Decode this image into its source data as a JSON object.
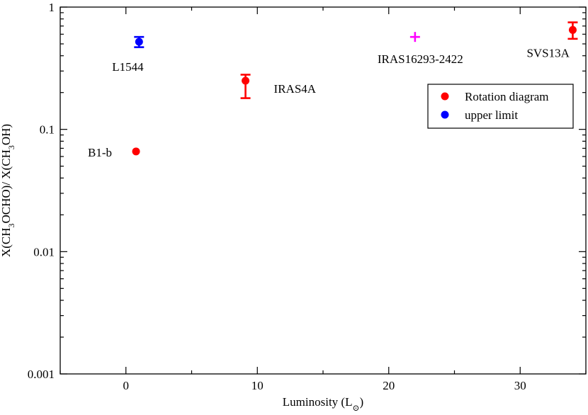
{
  "chart_data": {
    "type": "scatter",
    "title": "",
    "xlabel": "Luminosity (L",
    "xlabel_sub": "⊙",
    "xlabel_close": ")",
    "ylabel_parts": [
      "X(CH",
      "3",
      "OCHO)/ X(CH",
      "3",
      "OH)"
    ],
    "xlim": [
      -5,
      35
    ],
    "ylim": [
      0.001,
      1
    ],
    "yscale": "log",
    "grid": false,
    "x_ticks": [
      0,
      10,
      20,
      30
    ],
    "x_tick_labels": [
      "0",
      "10",
      "20",
      "30"
    ],
    "y_ticks": [
      0.001,
      0.01,
      0.1,
      1
    ],
    "y_tick_labels": [
      "0.001",
      "0.01",
      "0.1",
      "1"
    ],
    "legend_position": "top-right",
    "legend": [
      {
        "label": "Rotation diagram",
        "color": "#ff0000",
        "marker": "circle"
      },
      {
        "label": "upper limit",
        "color": "#0000ff",
        "marker": "circle"
      }
    ],
    "points": [
      {
        "label": "L1544",
        "x": 1.0,
        "y": 0.52,
        "err_low": 0.47,
        "err_high": 0.57,
        "color": "#0000ff",
        "marker": "circle"
      },
      {
        "label": "B1-b",
        "x": 0.77,
        "y": 0.066,
        "color": "#ff0000",
        "marker": "circle"
      },
      {
        "label": "IRAS4A",
        "x": 9.1,
        "y": 0.25,
        "err_low": 0.18,
        "err_high": 0.28,
        "color": "#ff0000",
        "marker": "circle"
      },
      {
        "label": "IRAS16293-2422",
        "x": 22.0,
        "y": 0.57,
        "color": "#ff00ff",
        "marker": "plus"
      },
      {
        "label": "SVS13A",
        "x": 34.0,
        "y": 0.65,
        "err_low": 0.55,
        "err_high": 0.75,
        "color": "#ff0000",
        "marker": "circle"
      }
    ]
  }
}
